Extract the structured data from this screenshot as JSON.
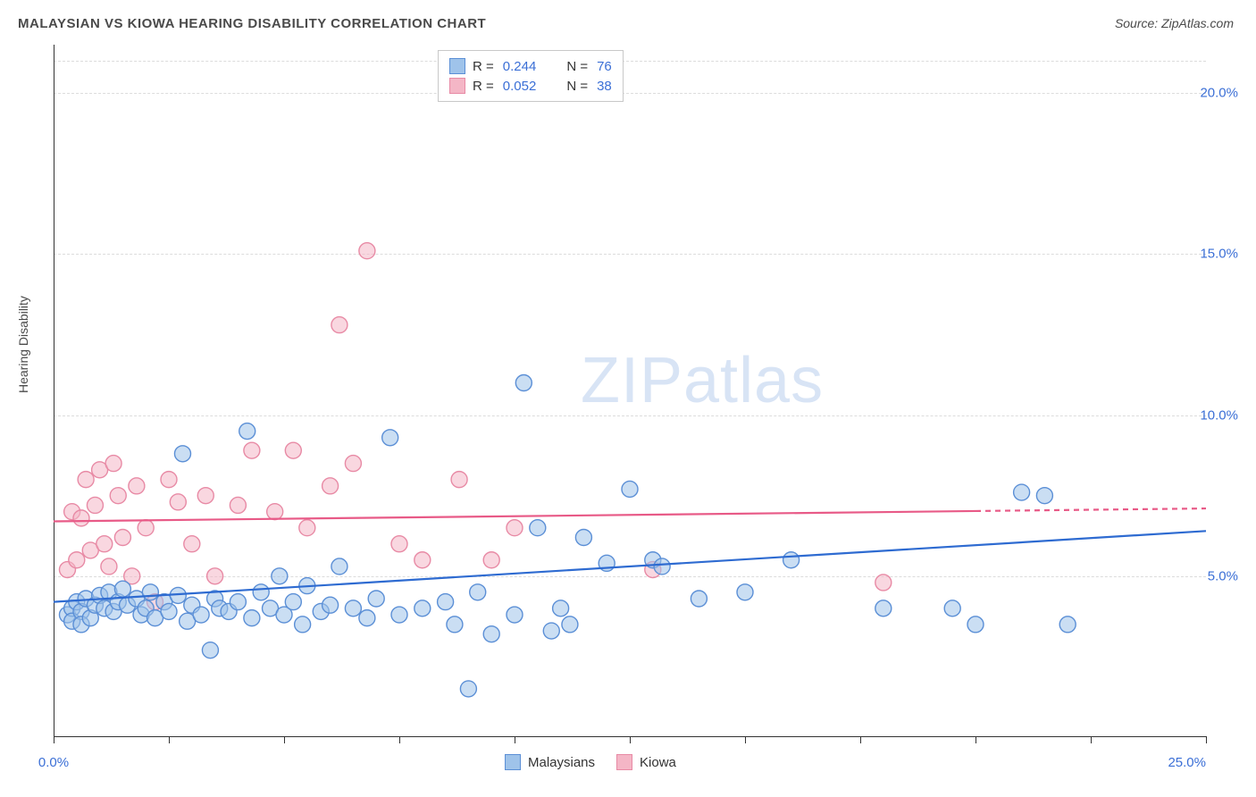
{
  "title": "MALAYSIAN VS KIOWA HEARING DISABILITY CORRELATION CHART",
  "source": "Source: ZipAtlas.com",
  "ylabel": "Hearing Disability",
  "watermark_bold": "ZIP",
  "watermark_rest": "atlas",
  "chart": {
    "type": "scatter",
    "xlim": [
      0,
      25
    ],
    "ylim": [
      0,
      21.5
    ],
    "background_color": "#ffffff",
    "grid_color": "#dcdcdc",
    "axis_color": "#333333",
    "label_color": "#3b6fd6",
    "text_color": "#4a4a4a",
    "xtick_positions": [
      0,
      2.5,
      5,
      7.5,
      10,
      12.5,
      15,
      17.5,
      20,
      22.5,
      25
    ],
    "xtick_labels_shown": [
      {
        "pos": 0,
        "label": "0.0%"
      },
      {
        "pos": 25,
        "label": "25.0%"
      }
    ],
    "ytick_positions": [
      5,
      10,
      15,
      20
    ],
    "ytick_labels": [
      "5.0%",
      "10.0%",
      "15.0%",
      "20.0%"
    ],
    "extra_gridline_y": 21,
    "marker_radius": 9,
    "marker_opacity": 0.55,
    "line_width": 2.2,
    "series": [
      {
        "name": "Malaysians",
        "fill": "#9fc3ea",
        "stroke": "#5b8fd6",
        "line_color": "#2e6bd1",
        "r": 0.244,
        "n": 76,
        "trend": {
          "x1": 0,
          "y1": 4.2,
          "x2": 25,
          "y2": 6.4,
          "dash_from_x": null
        }
      },
      {
        "name": "Kiowa",
        "fill": "#f4b6c6",
        "stroke": "#e88aa5",
        "line_color": "#e85a87",
        "r": 0.052,
        "n": 38,
        "trend": {
          "x1": 0,
          "y1": 6.7,
          "x2": 25,
          "y2": 7.1,
          "dash_from_x": 20
        }
      }
    ],
    "points_malaysians": [
      [
        0.3,
        3.8
      ],
      [
        0.4,
        4.0
      ],
      [
        0.4,
        3.6
      ],
      [
        0.5,
        4.2
      ],
      [
        0.6,
        3.9
      ],
      [
        0.6,
        3.5
      ],
      [
        0.7,
        4.3
      ],
      [
        0.8,
        3.7
      ],
      [
        0.9,
        4.1
      ],
      [
        1.0,
        4.4
      ],
      [
        1.1,
        4.0
      ],
      [
        1.2,
        4.5
      ],
      [
        1.3,
        3.9
      ],
      [
        1.4,
        4.2
      ],
      [
        1.5,
        4.6
      ],
      [
        1.6,
        4.1
      ],
      [
        1.8,
        4.3
      ],
      [
        1.9,
        3.8
      ],
      [
        2.0,
        4.0
      ],
      [
        2.1,
        4.5
      ],
      [
        2.2,
        3.7
      ],
      [
        2.4,
        4.2
      ],
      [
        2.5,
        3.9
      ],
      [
        2.7,
        4.4
      ],
      [
        2.8,
        8.8
      ],
      [
        2.9,
        3.6
      ],
      [
        3.0,
        4.1
      ],
      [
        3.2,
        3.8
      ],
      [
        3.4,
        2.7
      ],
      [
        3.5,
        4.3
      ],
      [
        3.6,
        4.0
      ],
      [
        3.8,
        3.9
      ],
      [
        4.0,
        4.2
      ],
      [
        4.2,
        9.5
      ],
      [
        4.3,
        3.7
      ],
      [
        4.5,
        4.5
      ],
      [
        4.7,
        4.0
      ],
      [
        4.9,
        5.0
      ],
      [
        5.0,
        3.8
      ],
      [
        5.2,
        4.2
      ],
      [
        5.4,
        3.5
      ],
      [
        5.5,
        4.7
      ],
      [
        5.8,
        3.9
      ],
      [
        6.0,
        4.1
      ],
      [
        6.2,
        5.3
      ],
      [
        6.5,
        4.0
      ],
      [
        6.8,
        3.7
      ],
      [
        7.0,
        4.3
      ],
      [
        7.3,
        9.3
      ],
      [
        7.5,
        3.8
      ],
      [
        8.0,
        4.0
      ],
      [
        8.5,
        4.2
      ],
      [
        8.7,
        3.5
      ],
      [
        9.0,
        1.5
      ],
      [
        9.2,
        4.5
      ],
      [
        9.5,
        3.2
      ],
      [
        10.0,
        3.8
      ],
      [
        10.2,
        11.0
      ],
      [
        10.5,
        6.5
      ],
      [
        10.8,
        3.3
      ],
      [
        11.0,
        4.0
      ],
      [
        11.2,
        3.5
      ],
      [
        11.5,
        6.2
      ],
      [
        12.0,
        5.4
      ],
      [
        12.5,
        7.7
      ],
      [
        13.0,
        5.5
      ],
      [
        13.2,
        5.3
      ],
      [
        14.0,
        4.3
      ],
      [
        15.0,
        4.5
      ],
      [
        16.0,
        5.5
      ],
      [
        18.0,
        4.0
      ],
      [
        20.0,
        3.5
      ],
      [
        21.0,
        7.6
      ],
      [
        21.5,
        7.5
      ],
      [
        22.0,
        3.5
      ],
      [
        19.5,
        4.0
      ]
    ],
    "points_kiowa": [
      [
        0.3,
        5.2
      ],
      [
        0.4,
        7.0
      ],
      [
        0.5,
        5.5
      ],
      [
        0.6,
        6.8
      ],
      [
        0.7,
        8.0
      ],
      [
        0.8,
        5.8
      ],
      [
        0.9,
        7.2
      ],
      [
        1.0,
        8.3
      ],
      [
        1.1,
        6.0
      ],
      [
        1.2,
        5.3
      ],
      [
        1.3,
        8.5
      ],
      [
        1.4,
        7.5
      ],
      [
        1.5,
        6.2
      ],
      [
        1.7,
        5.0
      ],
      [
        1.8,
        7.8
      ],
      [
        2.0,
        6.5
      ],
      [
        2.2,
        4.2
      ],
      [
        2.5,
        8.0
      ],
      [
        2.7,
        7.3
      ],
      [
        3.0,
        6.0
      ],
      [
        3.3,
        7.5
      ],
      [
        3.5,
        5.0
      ],
      [
        4.0,
        7.2
      ],
      [
        4.3,
        8.9
      ],
      [
        4.8,
        7.0
      ],
      [
        5.2,
        8.9
      ],
      [
        5.5,
        6.5
      ],
      [
        6.0,
        7.8
      ],
      [
        6.2,
        12.8
      ],
      [
        6.5,
        8.5
      ],
      [
        6.8,
        15.1
      ],
      [
        7.5,
        6.0
      ],
      [
        8.0,
        5.5
      ],
      [
        8.8,
        8.0
      ],
      [
        9.5,
        5.5
      ],
      [
        10.0,
        6.5
      ],
      [
        13.0,
        5.2
      ],
      [
        18.0,
        4.8
      ]
    ]
  },
  "legend_top": [
    {
      "swatch_fill": "#9fc3ea",
      "swatch_stroke": "#5b8fd6",
      "r": "0.244",
      "n": "76"
    },
    {
      "swatch_fill": "#f4b6c6",
      "swatch_stroke": "#e88aa5",
      "r": "0.052",
      "n": "38"
    }
  ],
  "legend_bottom": [
    {
      "swatch_fill": "#9fc3ea",
      "swatch_stroke": "#5b8fd6",
      "label": "Malaysians"
    },
    {
      "swatch_fill": "#f4b6c6",
      "swatch_stroke": "#e88aa5",
      "label": "Kiowa"
    }
  ]
}
